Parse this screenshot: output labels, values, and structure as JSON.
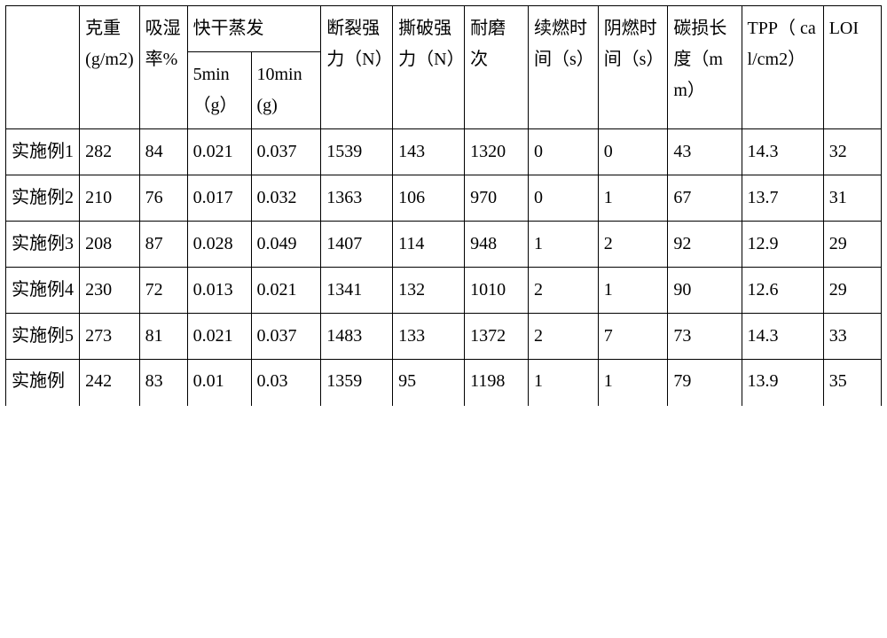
{
  "table": {
    "border_color": "#000000",
    "background_color": "#ffffff",
    "text_color": "#000000",
    "font_size_pt": 15,
    "header": {
      "row1": {
        "blank": "",
        "weight": "克重(g/m2)",
        "moisture": "吸湿率%",
        "quickdry": "快干蒸发",
        "break_strength": "断裂强力（N）",
        "tear_strength": "撕破强力（N）",
        "abrasion": "耐磨次",
        "afterflame": "续燃时间（s）",
        "afterglow": "阴燃时间（s）",
        "char_length": "碳损长度（mm）",
        "tpp": "TPP（ cal/cm2）",
        "loi": "LOI"
      },
      "row2": {
        "qd5": "5min（g）",
        "qd10": "10min(g)"
      }
    },
    "rows": [
      {
        "label": "实施例1",
        "weight": "282",
        "moisture": "84",
        "qd5": "0.021",
        "qd10": "0.037",
        "break_strength": "1539",
        "tear_strength": "143",
        "abrasion": "1320",
        "afterflame": "0",
        "afterglow": "0",
        "char_length": "43",
        "tpp": "14.3",
        "loi": "32"
      },
      {
        "label": "实施例2",
        "weight": "210",
        "moisture": "76",
        "qd5": "0.017",
        "qd10": "0.032",
        "break_strength": "1363",
        "tear_strength": "106",
        "abrasion": "970",
        "afterflame": "0",
        "afterglow": "1",
        "char_length": "67",
        "tpp": "13.7",
        "loi": "31"
      },
      {
        "label": "实施例3",
        "weight": "208",
        "moisture": "87",
        "qd5": "0.028",
        "qd10": "0.049",
        "break_strength": "1407",
        "tear_strength": "114",
        "abrasion": "948",
        "afterflame": "1",
        "afterglow": "2",
        "char_length": "92",
        "tpp": "12.9",
        "loi": "29"
      },
      {
        "label": "实施例4",
        "weight": "230",
        "moisture": "72",
        "qd5": "0.013",
        "qd10": "0.021",
        "break_strength": "1341",
        "tear_strength": "132",
        "abrasion": "1010",
        "afterflame": "2",
        "afterglow": "1",
        "char_length": "90",
        "tpp": "12.6",
        "loi": "29"
      },
      {
        "label": "实施例5",
        "weight": "273",
        "moisture": "81",
        "qd5": "0.021",
        "qd10": "0.037",
        "break_strength": "1483",
        "tear_strength": "133",
        "abrasion": "1372",
        "afterflame": "2",
        "afterglow": "7",
        "char_length": "73",
        "tpp": "14.3",
        "loi": "33"
      },
      {
        "label": "实施例",
        "weight": "242",
        "moisture": "83",
        "qd5": "0.01",
        "qd10": "0.03",
        "break_strength": "1359",
        "tear_strength": "95",
        "abrasion": "1198",
        "afterflame": "1",
        "afterglow": "1",
        "char_length": "79",
        "tpp": "13.9",
        "loi": "35"
      }
    ]
  }
}
